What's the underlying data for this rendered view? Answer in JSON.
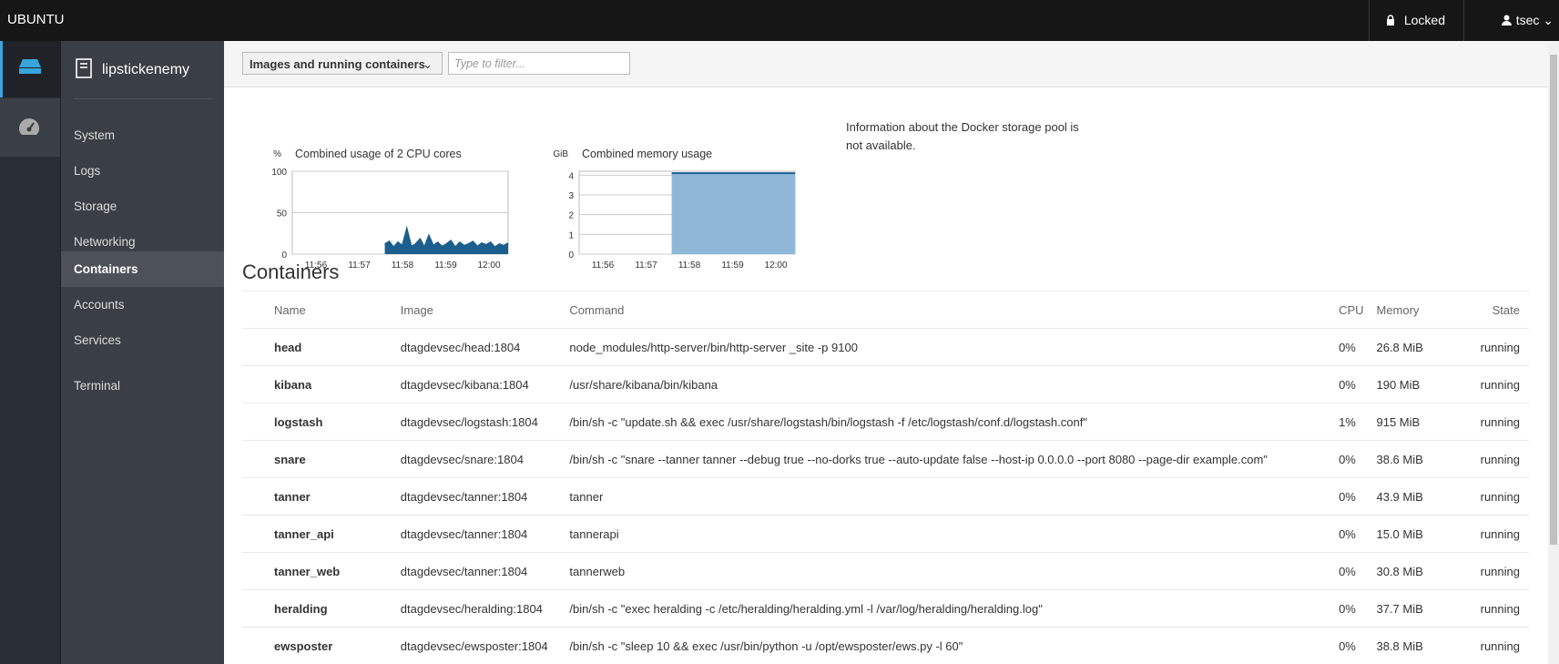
{
  "header": {
    "brand": "UBUNTU",
    "lock": "Locked",
    "user": "tsec"
  },
  "host": "lipstickenemy",
  "nav": [
    "System",
    "Logs",
    "Storage",
    "Networking",
    "Containers",
    "Accounts",
    "Services",
    "Terminal"
  ],
  "nav_active": 4,
  "toolbar": {
    "dropdown": "Images and running containers",
    "filter_placeholder": "Type to filter..."
  },
  "cpu_chart": {
    "unit": "%",
    "title": "Combined usage of 2 CPU cores",
    "ylim": [
      0,
      100
    ],
    "yticks": [
      0,
      50,
      100
    ],
    "x_labels": [
      "11:56",
      "11:57",
      "11:58",
      "11:59",
      "12:00"
    ],
    "color": "#1c5e8d",
    "fill": "#1c5e8d",
    "values": [
      null,
      null,
      null,
      null,
      null,
      null,
      null,
      null,
      null,
      null,
      null,
      null,
      null,
      null,
      null,
      null,
      null,
      null,
      null,
      null,
      null,
      12,
      15,
      8,
      14,
      10,
      30,
      9,
      12,
      18,
      8,
      22,
      10,
      14,
      9,
      12,
      16,
      8,
      14,
      10,
      12,
      15,
      9,
      13,
      11,
      14,
      8,
      12,
      10,
      13
    ]
  },
  "memory_chart": {
    "unit": "GiB",
    "title": "Combined memory usage",
    "ylim": [
      0,
      4.2
    ],
    "yticks": [
      0,
      1,
      2,
      3,
      4
    ],
    "x_labels": [
      "11:56",
      "11:57",
      "11:58",
      "11:59",
      "12:00"
    ],
    "color": "#1c5e8d",
    "fill": "#8fb8d8",
    "values": [
      null,
      null,
      null,
      null,
      null,
      null,
      null,
      null,
      null,
      null,
      null,
      null,
      null,
      null,
      null,
      null,
      null,
      null,
      null,
      null,
      null,
      4.1,
      4.1,
      4.1,
      4.1,
      4.1,
      4.1,
      4.1,
      4.1,
      4.1,
      4.1,
      4.1,
      4.1,
      4.1,
      4.1,
      4.1,
      4.1,
      4.1,
      4.1,
      4.1,
      4.1,
      4.1,
      4.1,
      4.1,
      4.1,
      4.1,
      4.1,
      4.1,
      4.1,
      4.1
    ]
  },
  "storage_note": "Information about the Docker storage pool is not available.",
  "section_title": "Containers",
  "table": {
    "columns": [
      "Name",
      "Image",
      "Command",
      "CPU",
      "Memory",
      "State"
    ],
    "rows": [
      [
        "head",
        "dtagdevsec/head:1804",
        "node_modules/http-server/bin/http-server _site -p 9100",
        "0%",
        "26.8 MiB",
        "running"
      ],
      [
        "kibana",
        "dtagdevsec/kibana:1804",
        "/usr/share/kibana/bin/kibana",
        "0%",
        "190 MiB",
        "running"
      ],
      [
        "logstash",
        "dtagdevsec/logstash:1804",
        "/bin/sh -c \"update.sh && exec /usr/share/logstash/bin/logstash -f /etc/logstash/conf.d/logstash.conf\"",
        "1%",
        "915 MiB",
        "running"
      ],
      [
        "snare",
        "dtagdevsec/snare:1804",
        "/bin/sh -c \"snare --tanner tanner --debug true --no-dorks true --auto-update false --host-ip 0.0.0.0 --port 8080 --page-dir example.com\"",
        "0%",
        "38.6 MiB",
        "running"
      ],
      [
        "tanner",
        "dtagdevsec/tanner:1804",
        "tanner",
        "0%",
        "43.9 MiB",
        "running"
      ],
      [
        "tanner_api",
        "dtagdevsec/tanner:1804",
        "tannerapi",
        "0%",
        "15.0 MiB",
        "running"
      ],
      [
        "tanner_web",
        "dtagdevsec/tanner:1804",
        "tannerweb",
        "0%",
        "30.8 MiB",
        "running"
      ],
      [
        "heralding",
        "dtagdevsec/heralding:1804",
        "/bin/sh -c \"exec heralding -c /etc/heralding/heralding.yml -l /var/log/heralding/heralding.log\"",
        "0%",
        "37.7 MiB",
        "running"
      ],
      [
        "ewsposter",
        "dtagdevsec/ewsposter:1804",
        "/bin/sh -c \"sleep 10 && exec /usr/bin/python -u /opt/ewsposter/ews.py -l 60\"",
        "0%",
        "38.8 MiB",
        "running"
      ]
    ]
  }
}
